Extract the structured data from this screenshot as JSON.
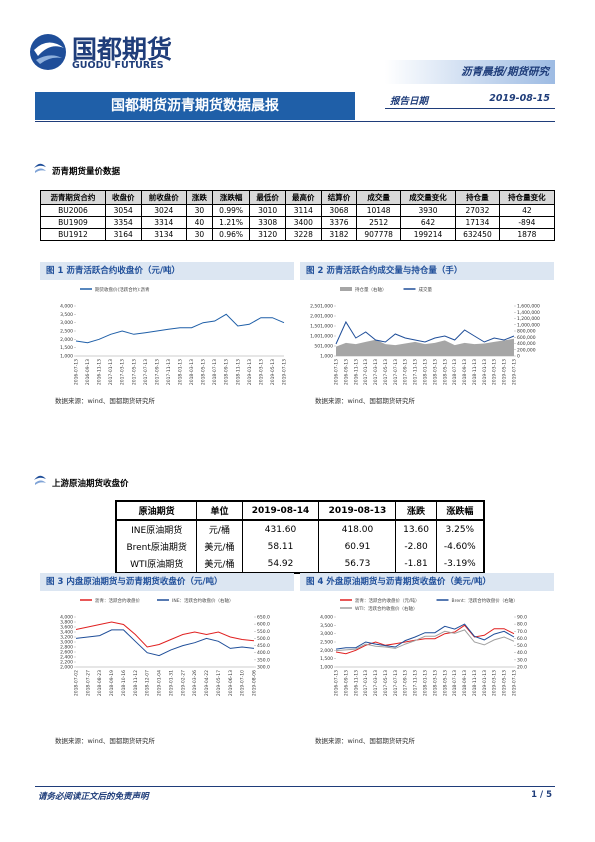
{
  "header": {
    "logo_cn": "国都期货",
    "logo_en": "GUODU FUTURES",
    "category": "沥青晨报/期货研究",
    "title": "国都期货沥青期货数据晨报",
    "date_label": "报告日期",
    "date": "2019-08-15"
  },
  "section1": {
    "heading": "沥青期货量价数据",
    "table": {
      "columns": [
        "沥青期货合约",
        "收盘价",
        "前收盘价",
        "涨跌",
        "涨跌幅",
        "最低价",
        "最高价",
        "结算价",
        "成交量",
        "成交量变化",
        "持仓量",
        "持仓量变化"
      ],
      "rows": [
        [
          "BU2006",
          "3054",
          "3024",
          "30",
          "0.99%",
          "3010",
          "3114",
          "3068",
          "10148",
          "3930",
          "27032",
          "42"
        ],
        [
          "BU1909",
          "3354",
          "3314",
          "40",
          "1.21%",
          "3308",
          "3400",
          "3376",
          "2512",
          "642",
          "17134",
          "-894"
        ],
        [
          "BU1912",
          "3164",
          "3134",
          "30",
          "0.96%",
          "3120",
          "3228",
          "3182",
          "907778",
          "199214",
          "632450",
          "1878"
        ]
      ]
    }
  },
  "figures": [
    {
      "label": "图 1 沥青活跃合约收盘价（元/吨）",
      "source": "数据来源：wind、国都期货研究所",
      "chart_data": {
        "type": "line",
        "categories": [
          "2016-07-13",
          "2016-09-13",
          "2016-11-13",
          "2017-01-13",
          "2017-03-13",
          "2017-05-13",
          "2017-07-13",
          "2017-09-13",
          "2017-11-13",
          "2018-01-13",
          "2018-03-13",
          "2018-05-13",
          "2018-07-13",
          "2018-09-13",
          "2018-11-13",
          "2019-01-13",
          "2019-03-13",
          "2019-05-13",
          "2019-07-13"
        ],
        "series": [
          {
            "name": "期货收盘价(活跃合约):沥青",
            "color": "#1f5fa8",
            "values": [
              1900,
              1800,
              2000,
              2300,
              2500,
              2300,
              2400,
              2500,
              2600,
              2700,
              2700,
              3000,
              3100,
              3500,
              2800,
              2900,
              3300,
              3300,
              3000
            ]
          }
        ],
        "ylim": [
          1000,
          4000
        ],
        "yticks": [
          {
            "value": 1000,
            "label": "1,000"
          },
          {
            "value": 1500,
            "label": "1,500"
          },
          {
            "value": 2000,
            "label": "2,000"
          },
          {
            "value": 2500,
            "label": "2,500"
          },
          {
            "value": 3000,
            "label": "3,000"
          },
          {
            "value": 3500,
            "label": "3,500"
          },
          {
            "value": 4000,
            "label": "4,000"
          }
        ]
      }
    },
    {
      "label": "图 2 沥青活跃合约成交量与持仓量（手）",
      "source": "数据来源：wind、国都期货研究所",
      "chart_data": {
        "type": "line",
        "categories": [
          "2016-07-13",
          "2016-09-13",
          "2016-11-13",
          "2017-01-13",
          "2017-03-13",
          "2017-05-13",
          "2017-07-13",
          "2017-09-13",
          "2017-11-13",
          "2018-01-13",
          "2018-03-13",
          "2018-05-13",
          "2018-07-13",
          "2018-09-13",
          "2018-11-13",
          "2019-01-13",
          "2019-03-13",
          "2019-05-13",
          "2019-07-13"
        ],
        "series": [
          {
            "name": "持仓量（右轴）",
            "color": "#a6a6a6",
            "kind": "area",
            "axis": "y2",
            "values": [
              300000,
              420000,
              380000,
              450000,
              520000,
              380000,
              350000,
              400000,
              450000,
              380000,
              420000,
              500000,
              350000,
              420000,
              380000,
              400000,
              450000,
              500000,
              550000
            ]
          },
          {
            "name": "成交量",
            "color": "#1f4e99",
            "values": [
              600000,
              1700000,
              900000,
              1200000,
              800000,
              700000,
              1100000,
              900000,
              800000,
              700000,
              900000,
              1000000,
              800000,
              1300000,
              1000000,
              700000,
              900000,
              800000,
              1000000
            ]
          }
        ],
        "ylim": [
          1000,
          2501000
        ],
        "yticks": [
          {
            "value": 1000,
            "label": "1,000"
          },
          {
            "value": 501000,
            "label": "501,000"
          },
          {
            "value": 1001000,
            "label": "1,001,000"
          },
          {
            "value": 1501000,
            "label": "1,501,000"
          },
          {
            "value": 2001000,
            "label": "2,001,000"
          },
          {
            "value": 2501000,
            "label": "2,501,000"
          }
        ],
        "y2lim": [
          0,
          1600000
        ],
        "y2ticks": [
          0,
          {
            "value": 200000,
            "label": "200,000"
          },
          {
            "value": 400000,
            "label": "400,000"
          },
          {
            "value": 600000,
            "label": "600,000"
          },
          {
            "value": 800000,
            "label": "800,000"
          },
          {
            "value": 1000000,
            "label": "1,000,000"
          },
          {
            "value": 1200000,
            "label": "1,200,000"
          },
          {
            "value": 1400000,
            "label": "1,400,000"
          },
          {
            "value": 1600000,
            "label": "1,600,000"
          }
        ]
      }
    },
    {
      "label": "图 3 内盘原油期货与沥青期货收盘价（元/吨）",
      "source": "数据来源：wind、国都期货研究所",
      "chart_data": {
        "type": "line",
        "categories": [
          "2018-07-02",
          "2018-07-27",
          "2018-08-23",
          "2018-09-19",
          "2018-10-16",
          "2018-11-12",
          "2018-12-07",
          "2019-01-04",
          "2019-01-31",
          "2019-02-27",
          "2019-03-26",
          "2019-04-22",
          "2019-05-17",
          "2019-06-13",
          "2019-07-10",
          "2019-08-06"
        ],
        "series": [
          {
            "name": "沥青：活跃合约收盘价",
            "color": "#e02020",
            "values": [
              3500,
              3600,
              3700,
              3800,
              3700,
              3300,
              2800,
              2900,
              3100,
              3300,
              3400,
              3300,
              3400,
              3200,
              3100,
              3050
            ]
          },
          {
            "name": "INE：活跃合约收盘价（右轴）",
            "color": "#1f4e99",
            "axis": "y2",
            "values": [
              500,
              510,
              520,
              560,
              560,
              480,
              400,
              380,
              420,
              450,
              470,
              500,
              480,
              430,
              440,
              430
            ]
          }
        ],
        "ylim": [
          2000,
          4000
        ],
        "yticks": [
          {
            "value": 2000,
            "label": "2,000"
          },
          {
            "value": 2200,
            "label": "2,200"
          },
          {
            "value": 2400,
            "label": "2,400"
          },
          {
            "value": 2600,
            "label": "2,600"
          },
          {
            "value": 2800,
            "label": "2,800"
          },
          {
            "value": 3000,
            "label": "3,000"
          },
          {
            "value": 3200,
            "label": "3,200"
          },
          {
            "value": 3400,
            "label": "3,400"
          },
          {
            "value": 3600,
            "label": "3,600"
          },
          {
            "value": 3800,
            "label": "3,800"
          },
          {
            "value": 4000,
            "label": "4,000"
          }
        ],
        "y2lim": [
          300,
          650
        ],
        "y2ticks": [
          {
            "value": 300,
            "label": "300.0"
          },
          {
            "value": 350,
            "label": "350.0"
          },
          {
            "value": 400,
            "label": "400.0"
          },
          {
            "value": 450,
            "label": "450.0"
          },
          {
            "value": 500,
            "label": "500.0"
          },
          {
            "value": 550,
            "label": "550.0"
          },
          {
            "value": 600,
            "label": "600.0"
          },
          {
            "value": 650,
            "label": "650.0"
          }
        ]
      }
    },
    {
      "label": "图 4 外盘原油期货与沥青期货收盘价（美元/吨）",
      "source": "数据来源：wind、国都期货研究所",
      "chart_data": {
        "type": "line",
        "categories": [
          "2016-07-13",
          "2016-09-13",
          "2016-11-13",
          "2017-01-13",
          "2017-03-13",
          "2017-05-13",
          "2017-07-13",
          "2017-09-13",
          "2017-11-13",
          "2018-01-13",
          "2018-03-13",
          "2018-05-13",
          "2018-07-13",
          "2018-09-13",
          "2018-11-13",
          "2019-01-13",
          "2019-03-13",
          "2019-05-13",
          "2019-07-13"
        ],
        "series": [
          {
            "name": "沥青：活跃合约收盘价（元/吨）",
            "color": "#e02020",
            "values": [
              1900,
              1800,
              2000,
              2300,
              2500,
              2300,
              2400,
              2500,
              2600,
              2700,
              2700,
              3000,
              3100,
              3500,
              2800,
              2900,
              3300,
              3300,
              3000
            ]
          },
          {
            "name": "Brent：活跃合约收盘价（右轴）",
            "color": "#1f4e99",
            "axis": "y2",
            "values": [
              45,
              47,
              47,
              55,
              52,
              50,
              48,
              57,
              62,
              68,
              68,
              77,
              73,
              80,
              63,
              58,
              66,
              70,
              62
            ]
          },
          {
            "name": "WTI：活跃合约收盘价（右轴）",
            "color": "#a0a0a0",
            "axis": "y2",
            "values": [
              43,
              44,
              45,
              52,
              49,
              48,
              46,
              52,
              57,
              63,
              63,
              70,
              67,
              72,
              55,
              51,
              58,
              62,
              56
            ]
          }
        ],
        "ylim": [
          1000,
          4000
        ],
        "yticks": [
          {
            "value": 1000,
            "label": "1,000"
          },
          {
            "value": 1500,
            "label": "1,500"
          },
          {
            "value": 2000,
            "label": "2,000"
          },
          {
            "value": 2500,
            "label": "2,500"
          },
          {
            "value": 3000,
            "label": "3,000"
          },
          {
            "value": 3500,
            "label": "3,500"
          },
          {
            "value": 4000,
            "label": "4,000"
          }
        ],
        "y2lim": [
          20,
          90
        ],
        "y2ticks": [
          {
            "value": 20,
            "label": "20.0"
          },
          {
            "value": 30,
            "label": "30.0"
          },
          {
            "value": 40,
            "label": "40.0"
          },
          {
            "value": 50,
            "label": "50.0"
          },
          {
            "value": 60,
            "label": "60.0"
          },
          {
            "value": 70,
            "label": "70.0"
          },
          {
            "value": 80,
            "label": "80.0"
          },
          {
            "value": 90,
            "label": "90.0"
          }
        ]
      }
    }
  ],
  "section2": {
    "heading": "上游原油期货收盘价",
    "table": {
      "columns": [
        "原油期货",
        "单位",
        "2019-08-14",
        "2019-08-13",
        "涨跌",
        "涨跌幅"
      ],
      "rows": [
        [
          "INE原油期货",
          "元/桶",
          "431.60",
          "418.00",
          "13.60",
          "3.25%"
        ],
        [
          "Brent原油期货",
          "美元/桶",
          "58.11",
          "60.91",
          "-2.80",
          "-4.60%"
        ],
        [
          "WTI原油期货",
          "美元/桶",
          "54.92",
          "56.73",
          "-1.81",
          "-3.19%"
        ]
      ]
    }
  },
  "footer": {
    "disclaimer": "请务必阅读正文后的免责声明",
    "page": "1 / 5"
  }
}
